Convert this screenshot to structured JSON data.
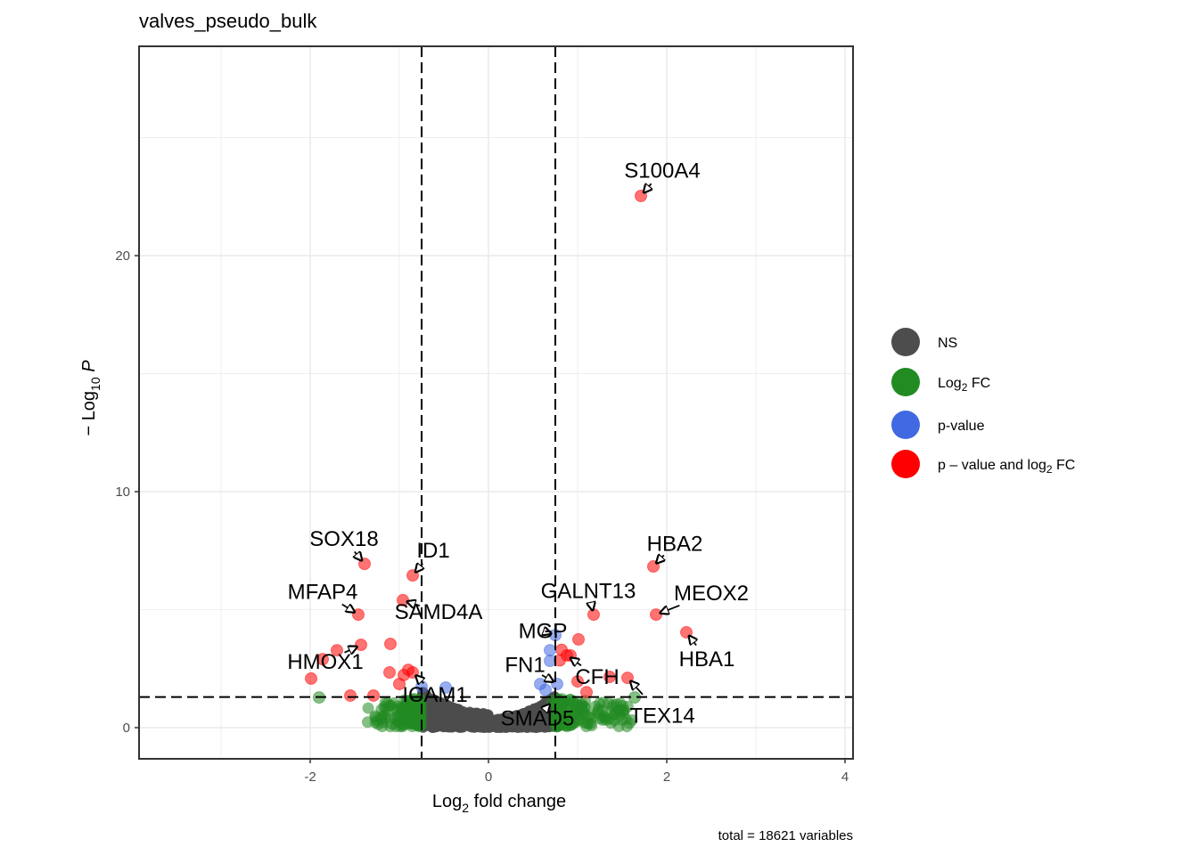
{
  "chart_data": {
    "type": "scatter",
    "subtype": "volcano",
    "title": "valves_pseudo_bulk",
    "xlabel": "Log2 fold change",
    "xlabel_parts": {
      "pre": "Log",
      "sub": "2",
      "post": " fold change"
    },
    "ylabel": "-Log10 P",
    "ylabel_parts": {
      "pre": "− Log",
      "sub": "10",
      "post": " P"
    },
    "caption": "total = 18621 variables",
    "xlim": [
      -3.92,
      4.09
    ],
    "ylim": [
      -1.32,
      28.87
    ],
    "x_ticks": [
      -2,
      0,
      2,
      4
    ],
    "x_tick_labels": [
      "-2",
      "0",
      "2",
      "4"
    ],
    "y_ticks": [
      0,
      10,
      20
    ],
    "y_tick_labels": [
      "0",
      "10",
      "20"
    ],
    "grid": true,
    "cutoffs": {
      "log2fc": [
        -0.75,
        0.75
      ],
      "neg_log10_p": 1.3
    },
    "legend": {
      "placement": "right",
      "entries": [
        {
          "key": "NS",
          "label": "NS",
          "color": "#4d4d4d"
        },
        {
          "key": "FC",
          "label": "Log2 FC",
          "label_parts": {
            "pre": "Log",
            "sub": "2",
            "post": " FC"
          },
          "color": "#228b22"
        },
        {
          "key": "P",
          "label": "p-value",
          "color": "#4169e1"
        },
        {
          "key": "FC_P",
          "label": "p – value and log2 FC",
          "label_parts": {
            "pre": "p – value and log",
            "sub": "2",
            "post": " FC"
          },
          "color": "#ff0000"
        }
      ]
    },
    "labeled_points": [
      {
        "gene": "S100A4",
        "x": 1.71,
        "y": 22.53,
        "category": "FC_P",
        "label_x": 1.95,
        "label_y": 23.3
      },
      {
        "gene": "SOX18",
        "x": -1.39,
        "y": 6.94,
        "category": "FC_P",
        "label_x": -1.62,
        "label_y": 7.7
      },
      {
        "gene": "ID1",
        "x": -0.85,
        "y": 6.45,
        "category": "FC_P",
        "label_x": -0.62,
        "label_y": 7.2
      },
      {
        "gene": "MFAP4",
        "x": -1.46,
        "y": 4.79,
        "category": "FC_P",
        "label_x": -1.86,
        "label_y": 5.45
      },
      {
        "gene": "SAMD4A",
        "x": -0.96,
        "y": 5.4,
        "category": "FC_P",
        "label_x": -0.56,
        "label_y": 4.6
      },
      {
        "gene": "HMOX1",
        "x": -1.43,
        "y": 3.51,
        "category": "FC_P",
        "label_x": -1.83,
        "label_y": 2.5
      },
      {
        "gene": "ICAM1",
        "x": -0.85,
        "y": 2.34,
        "category": "FC_P",
        "label_x": -0.6,
        "label_y": 1.1
      },
      {
        "gene": "HBA2",
        "x": 1.85,
        "y": 6.83,
        "category": "FC_P",
        "label_x": 2.09,
        "label_y": 7.5
      },
      {
        "gene": "MEOX2",
        "x": 1.88,
        "y": 4.79,
        "category": "FC_P",
        "label_x": 2.5,
        "label_y": 5.4
      },
      {
        "gene": "GALNT13",
        "x": 1.18,
        "y": 4.79,
        "category": "FC_P",
        "label_x": 1.12,
        "label_y": 5.5
      },
      {
        "gene": "HBA1",
        "x": 2.22,
        "y": 4.04,
        "category": "FC_P",
        "label_x": 2.45,
        "label_y": 2.6
      },
      {
        "gene": "MGP",
        "x": 0.75,
        "y": 3.92,
        "category": "P",
        "label_x": 0.61,
        "label_y": 3.8
      },
      {
        "gene": "CFH",
        "x": 0.88,
        "y": 3.06,
        "category": "FC_P",
        "label_x": 1.22,
        "label_y": 1.85
      },
      {
        "gene": "FN1",
        "x": 0.77,
        "y": 1.85,
        "category": "P",
        "label_x": 0.41,
        "label_y": 2.35
      },
      {
        "gene": "SMAD5",
        "x": 0.72,
        "y": 1.13,
        "category": "FC",
        "label_x": 0.55,
        "label_y": 0.1
      },
      {
        "gene": "TEX14",
        "x": 1.56,
        "y": 2.11,
        "category": "FC_P",
        "label_x": 1.95,
        "label_y": 0.2
      }
    ],
    "other_highlighted_points": [
      {
        "x": -1.99,
        "y": 2.08,
        "category": "FC_P"
      },
      {
        "x": -1.86,
        "y": 2.9,
        "category": "FC_P"
      },
      {
        "x": -1.7,
        "y": 3.28,
        "category": "FC_P"
      },
      {
        "x": -1.1,
        "y": 3.55,
        "category": "FC_P"
      },
      {
        "x": -1.11,
        "y": 2.34,
        "category": "FC_P"
      },
      {
        "x": -0.95,
        "y": 2.23,
        "category": "FC_P"
      },
      {
        "x": -0.9,
        "y": 2.45,
        "category": "FC_P"
      },
      {
        "x": -1.0,
        "y": 1.85,
        "category": "FC_P"
      },
      {
        "x": -1.55,
        "y": 1.36,
        "category": "FC_P"
      },
      {
        "x": -1.29,
        "y": 1.36,
        "category": "FC_P"
      },
      {
        "x": 1.01,
        "y": 3.74,
        "category": "FC_P"
      },
      {
        "x": 1.36,
        "y": 2.15,
        "category": "FC_P"
      },
      {
        "x": 0.92,
        "y": 3.06,
        "category": "FC_P"
      },
      {
        "x": 0.82,
        "y": 3.3,
        "category": "FC_P"
      },
      {
        "x": 1.0,
        "y": 1.96,
        "category": "FC_P"
      },
      {
        "x": 0.8,
        "y": 2.85,
        "category": "FC_P"
      },
      {
        "x": 1.1,
        "y": 1.5,
        "category": "FC_P"
      },
      {
        "x": -0.75,
        "y": 1.74,
        "category": "P"
      },
      {
        "x": -0.48,
        "y": 1.7,
        "category": "P"
      },
      {
        "x": 0.58,
        "y": 1.85,
        "category": "P"
      },
      {
        "x": 0.69,
        "y": 3.28,
        "category": "P"
      },
      {
        "x": 0.69,
        "y": 2.83,
        "category": "P"
      },
      {
        "x": 0.64,
        "y": 1.6,
        "category": "P"
      },
      {
        "x": -1.9,
        "y": 1.28,
        "category": "FC"
      },
      {
        "x": 1.64,
        "y": 1.28,
        "category": "FC"
      }
    ],
    "bulk_cloud_note": "dense NS (grey) cloud between log2FC -0.75 and 0.75 at low significance; green FC cloud on both flanks below cutoff"
  }
}
